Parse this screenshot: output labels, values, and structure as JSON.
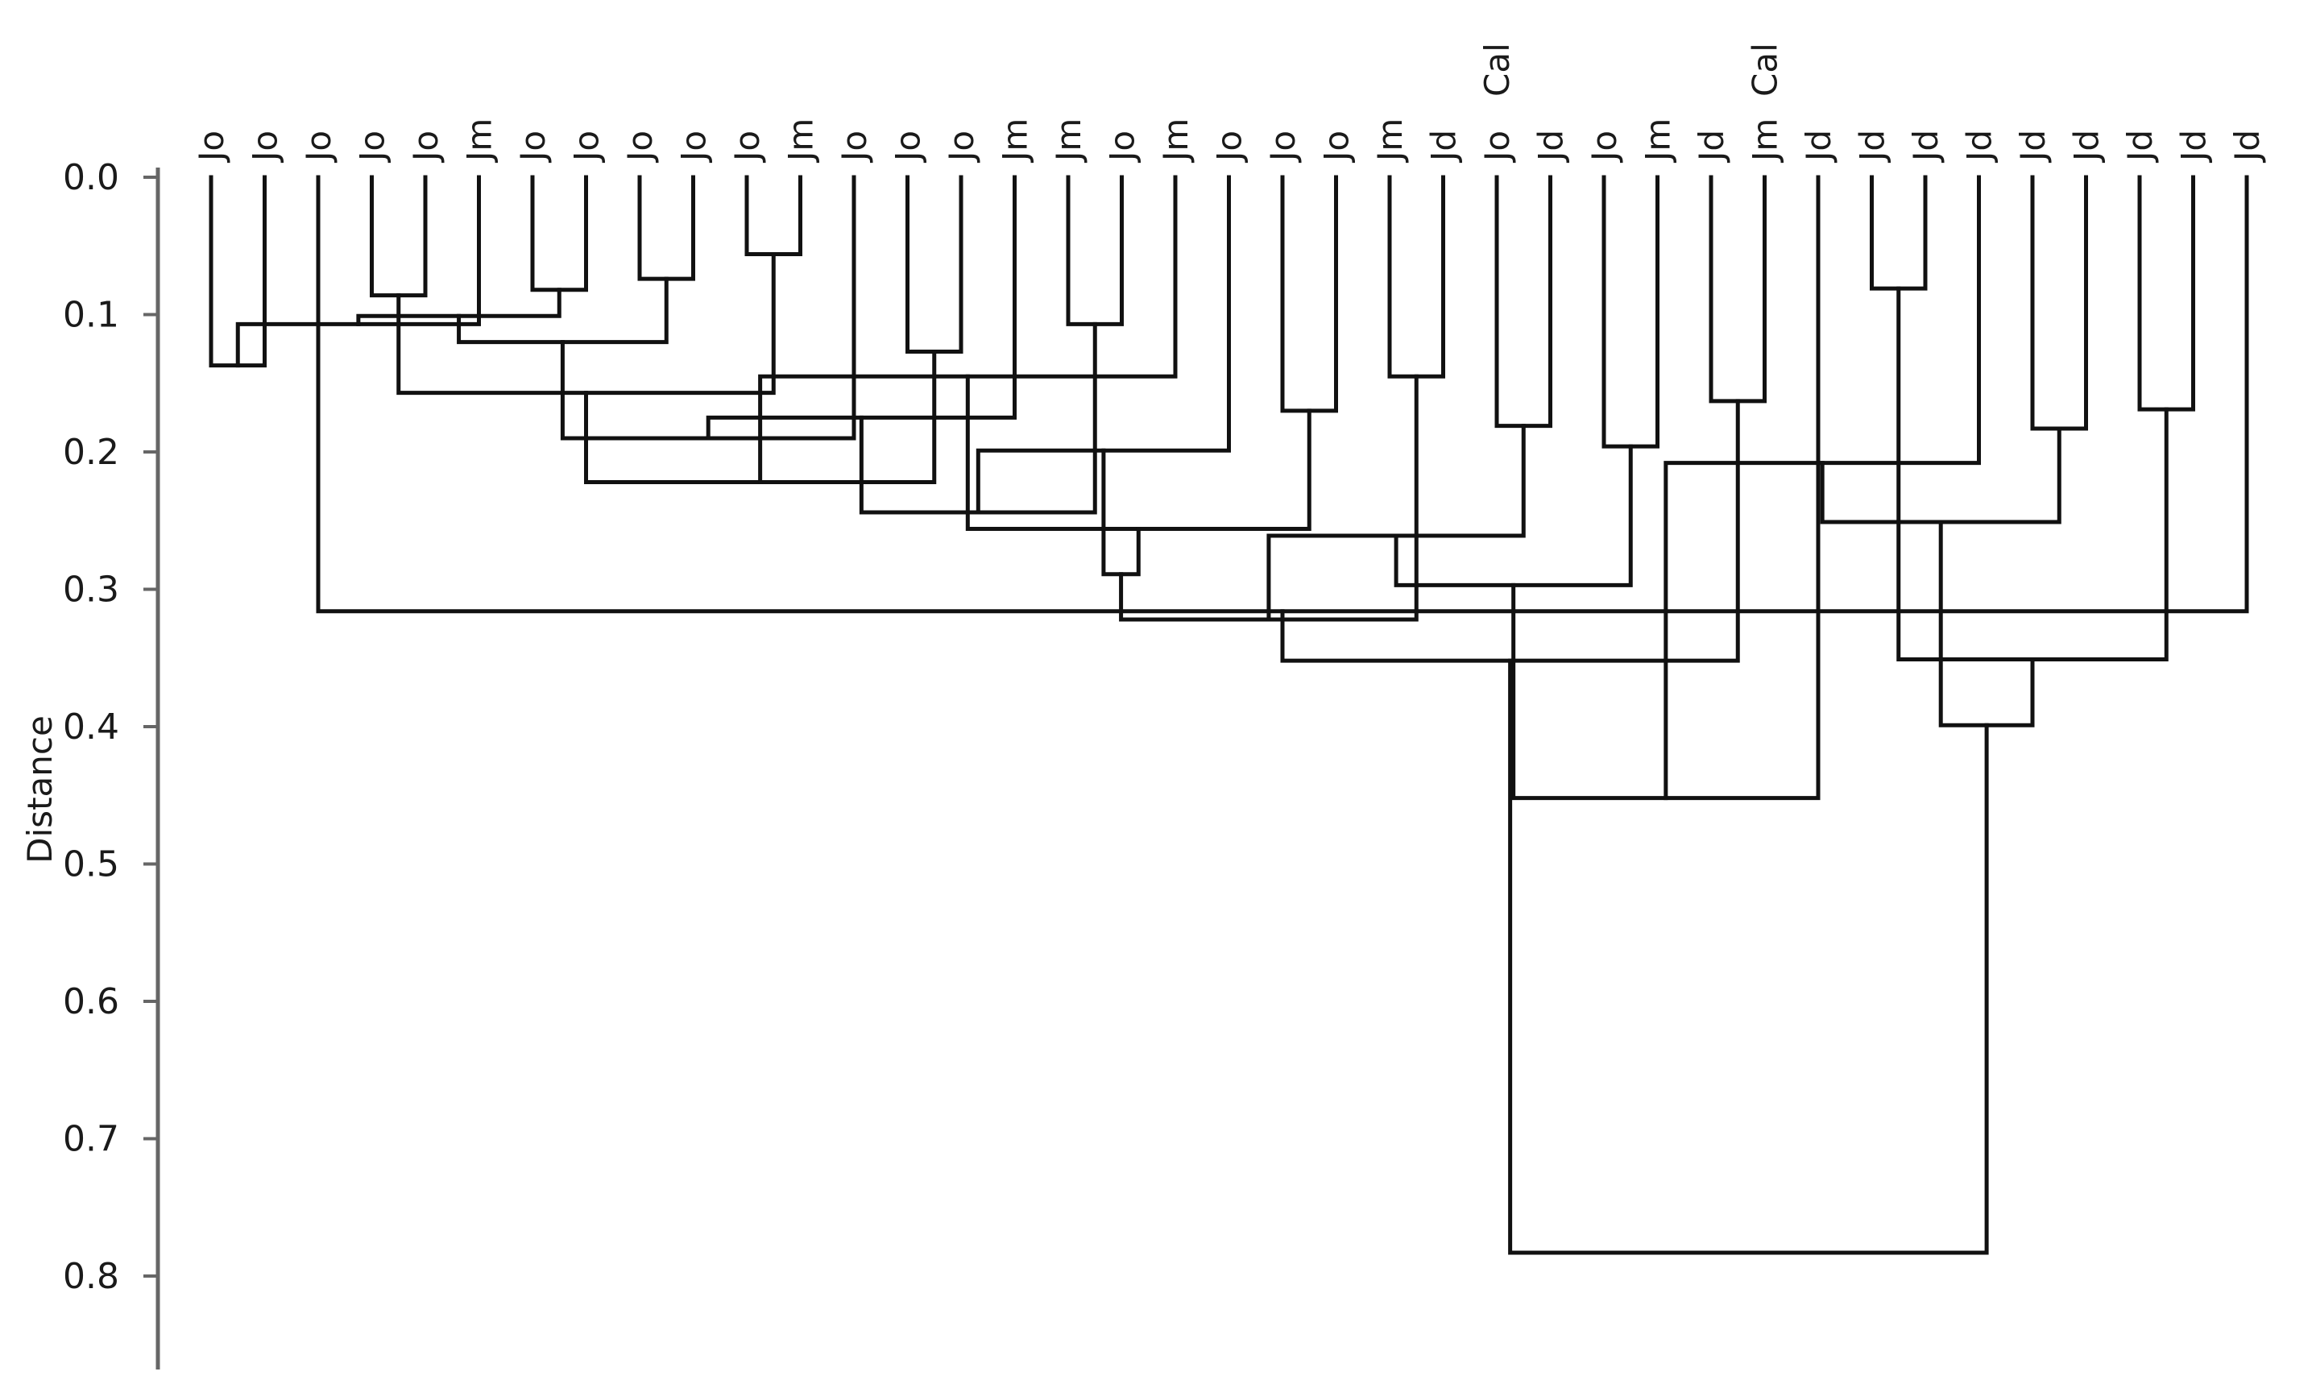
{
  "chart_data": {
    "type": "dendrogram",
    "ylabel": "Distance",
    "ylim": [
      0,
      0.86
    ],
    "y_ticks": [
      "0.0",
      "0.1",
      "0.2",
      "0.3",
      "0.4",
      "0.5",
      "0.6",
      "0.7",
      "0.8"
    ],
    "leaves": [
      {
        "label": "Jo"
      },
      {
        "label": "Jo"
      },
      {
        "label": "Jo"
      },
      {
        "label": "Jo"
      },
      {
        "label": "Jo"
      },
      {
        "label": "Jm"
      },
      {
        "label": "Jo"
      },
      {
        "label": "Jo"
      },
      {
        "label": "Jo"
      },
      {
        "label": "Jo"
      },
      {
        "label": "Jo"
      },
      {
        "label": "Jm"
      },
      {
        "label": "Jo"
      },
      {
        "label": "Jo"
      },
      {
        "label": "Jo"
      },
      {
        "label": "Jm"
      },
      {
        "label": "Jm"
      },
      {
        "label": "Jo"
      },
      {
        "label": "Jm"
      },
      {
        "label": "Jo"
      },
      {
        "label": "Jo"
      },
      {
        "label": "Jo"
      },
      {
        "label": "Jm"
      },
      {
        "label": "Jd"
      },
      {
        "label": "Jo",
        "extra": "Cal"
      },
      {
        "label": "Jd"
      },
      {
        "label": "Jo"
      },
      {
        "label": "Jm"
      },
      {
        "label": "Jd"
      },
      {
        "label": "Jm",
        "extra": "Cal"
      },
      {
        "label": "Jd"
      },
      {
        "label": "Jd"
      },
      {
        "label": "Jd"
      },
      {
        "label": "Jd"
      },
      {
        "label": "Jd"
      },
      {
        "label": "Jd"
      },
      {
        "label": "Jd"
      },
      {
        "label": "Jd"
      },
      {
        "label": "Jd"
      }
    ],
    "merges": [
      [
        0,
        1,
        0.137
      ],
      [
        3,
        4,
        0.086
      ],
      [
        39,
        5,
        0.107
      ],
      [
        6,
        7,
        0.082
      ],
      [
        8,
        9,
        0.074
      ],
      [
        41,
        42,
        0.101
      ],
      [
        10,
        11,
        0.056
      ],
      [
        43,
        44,
        0.12
      ],
      [
        40,
        45,
        0.157
      ],
      [
        46,
        12,
        0.19
      ],
      [
        13,
        14,
        0.127
      ],
      [
        48,
        15,
        0.175
      ],
      [
        47,
        49,
        0.222
      ],
      [
        16,
        17,
        0.107
      ],
      [
        51,
        18,
        0.145
      ],
      [
        50,
        52,
        0.244
      ],
      [
        20,
        21,
        0.17
      ],
      [
        19,
        54,
        0.199
      ],
      [
        53,
        55,
        0.256
      ],
      [
        22,
        23,
        0.145
      ],
      [
        56,
        57,
        0.289
      ],
      [
        38,
        2,
        0.316
      ],
      [
        59,
        58,
        0.322
      ],
      [
        24,
        25,
        0.181
      ],
      [
        26,
        27,
        0.196
      ],
      [
        61,
        62,
        0.261
      ],
      [
        28,
        29,
        0.163
      ],
      [
        63,
        64,
        0.297
      ],
      [
        60,
        65,
        0.352
      ],
      [
        66,
        30,
        0.452
      ],
      [
        31,
        32,
        0.081
      ],
      [
        68,
        33,
        0.208
      ],
      [
        34,
        35,
        0.183
      ],
      [
        36,
        37,
        0.169
      ],
      [
        70,
        71,
        0.251
      ],
      [
        69,
        72,
        0.351
      ],
      [
        73,
        74,
        0.399
      ],
      [
        67,
        75,
        0.783
      ]
    ]
  }
}
